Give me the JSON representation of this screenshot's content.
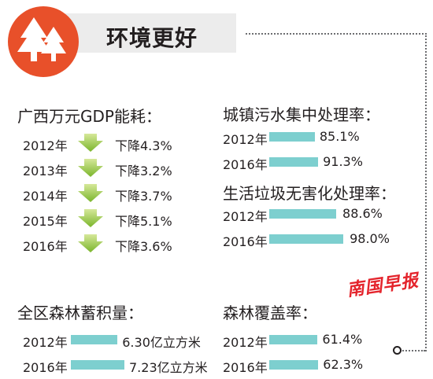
{
  "header": {
    "title": "环境更好"
  },
  "gdp_energy": {
    "title": "广西万元GDP能耗：",
    "rows": [
      {
        "year": "2012年",
        "text": "下降4.3%",
        "value": 4.3
      },
      {
        "year": "2013年",
        "text": "下降3.2%",
        "value": 3.2
      },
      {
        "year": "2014年",
        "text": "下降3.7%",
        "value": 3.7
      },
      {
        "year": "2015年",
        "text": "下降5.1%",
        "value": 5.1
      },
      {
        "year": "2016年",
        "text": "下降3.6%",
        "value": 3.6
      }
    ]
  },
  "sewage": {
    "title": "城镇污水集中处理率：",
    "rows": [
      {
        "year": "2012年",
        "text": "85.1%",
        "value": 85.1
      },
      {
        "year": "2016年",
        "text": "91.3%",
        "value": 91.3
      }
    ]
  },
  "garbage": {
    "title": "生活垃圾无害化处理率：",
    "rows": [
      {
        "year": "2012年",
        "text": "88.6%",
        "value": 88.6
      },
      {
        "year": "2016年",
        "text": "98.0%",
        "value": 98.0
      }
    ]
  },
  "forest_stock": {
    "title": "全区森林蓄积量：",
    "rows": [
      {
        "year": "2012年",
        "text": "6.30亿立方米",
        "value": 6.3
      },
      {
        "year": "2016年",
        "text": "7.23亿立方米",
        "value": 7.23
      }
    ]
  },
  "forest_cover": {
    "title": "森林覆盖率：",
    "rows": [
      {
        "year": "2012年",
        "text": "61.4%",
        "value": 61.4
      },
      {
        "year": "2016年",
        "text": "62.3%",
        "value": 62.3
      }
    ]
  },
  "watermark": "南国早报",
  "colors": {
    "accent": "#e8502a",
    "bar": "#7dcfcf",
    "arrow": "#7ab52b"
  },
  "icons": {
    "logo": "pine-trees-icon",
    "arrow": "arrow-down-icon"
  },
  "chart_data": [
    {
      "type": "table",
      "title": "广西万元GDP能耗：",
      "categories": [
        "2012年",
        "2013年",
        "2014年",
        "2015年",
        "2016年"
      ],
      "values": [
        4.3,
        3.2,
        3.7,
        5.1,
        3.6
      ],
      "unit": "%"
    },
    {
      "type": "bar",
      "title": "城镇污水集中处理率：",
      "categories": [
        "2012年",
        "2016年"
      ],
      "values": [
        85.1,
        91.3
      ],
      "unit": "%"
    },
    {
      "type": "bar",
      "title": "生活垃圾无害化处理率：",
      "categories": [
        "2012年",
        "2016年"
      ],
      "values": [
        88.6,
        98.0
      ],
      "unit": "%"
    },
    {
      "type": "bar",
      "title": "全区森林蓄积量：",
      "categories": [
        "2012年",
        "2016年"
      ],
      "values": [
        6.3,
        7.23
      ],
      "unit": "亿立方米"
    },
    {
      "type": "bar",
      "title": "森林覆盖率：",
      "categories": [
        "2012年",
        "2016年"
      ],
      "values": [
        61.4,
        62.3
      ],
      "unit": "%"
    }
  ]
}
